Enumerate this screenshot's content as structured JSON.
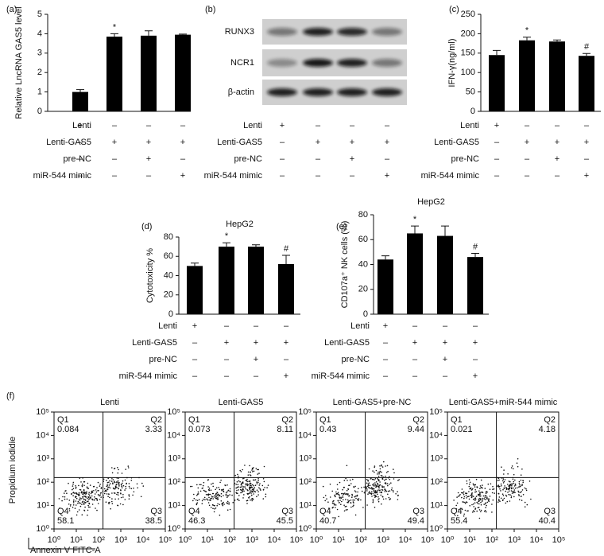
{
  "chart_data": [
    {
      "type": "bar",
      "label": "(a)",
      "ylabel": "Relative LncRNA GAS5 level",
      "values": [
        1.0,
        3.85,
        3.9,
        3.95
      ],
      "errors": [
        0.12,
        0.15,
        0.25,
        0.03
      ],
      "annotations": [
        null,
        "*",
        null,
        null
      ],
      "color": "#000000",
      "ylim": [
        0,
        5
      ],
      "yticks": [
        0,
        1,
        2,
        3,
        4,
        5
      ],
      "conditions": [
        {
          "name": "Lenti",
          "signs": [
            "+",
            "–",
            "–",
            "–"
          ]
        },
        {
          "name": "Lenti-GAS5",
          "signs": [
            "–",
            "+",
            "+",
            "+"
          ]
        },
        {
          "name": "pre-NC",
          "signs": [
            "–",
            "–",
            "+",
            "–"
          ]
        },
        {
          "name": "miR-544 mimic",
          "signs": [
            "–",
            "–",
            "–",
            "+"
          ]
        }
      ]
    },
    {
      "type": "bar",
      "label": "(c)",
      "ylabel": "IFN-γ(ng/ml)",
      "values": [
        145,
        183,
        180,
        143
      ],
      "errors": [
        12,
        8,
        4,
        6
      ],
      "annotations": [
        null,
        "*",
        null,
        "#"
      ],
      "color": "#000000",
      "ylim": [
        0,
        250
      ],
      "yticks": [
        0,
        50,
        100,
        150,
        200,
        250
      ],
      "conditions": [
        {
          "name": "Lenti",
          "signs": [
            "+",
            "–",
            "–",
            "–"
          ]
        },
        {
          "name": "Lenti-GAS5",
          "signs": [
            "–",
            "+",
            "+",
            "+"
          ]
        },
        {
          "name": "pre-NC",
          "signs": [
            "–",
            "–",
            "+",
            "–"
          ]
        },
        {
          "name": "miR-544 mimic",
          "signs": [
            "–",
            "–",
            "–",
            "+"
          ]
        }
      ]
    },
    {
      "type": "bar",
      "label": "(d)",
      "title": "HepG2",
      "ylabel": "Cytotoxicity %",
      "values": [
        50,
        70,
        70,
        52
      ],
      "errors": [
        3,
        4,
        2,
        9
      ],
      "annotations": [
        null,
        "*",
        null,
        "#"
      ],
      "color": "#000000",
      "ylim": [
        0,
        80
      ],
      "yticks": [
        0,
        20,
        40,
        60,
        80
      ],
      "conditions": [
        {
          "name": "Lenti",
          "signs": [
            "+",
            "–",
            "–",
            "–"
          ]
        },
        {
          "name": "Lenti-GAS5",
          "signs": [
            "–",
            "+",
            "+",
            "+"
          ]
        },
        {
          "name": "pre-NC",
          "signs": [
            "–",
            "–",
            "+",
            "–"
          ]
        },
        {
          "name": "miR-544 mimic",
          "signs": [
            "–",
            "–",
            "–",
            "+"
          ]
        }
      ]
    },
    {
      "type": "bar",
      "label": "(e)",
      "title": "HepG2",
      "ylabel": "CD107a⁺ NK cells (%)",
      "values": [
        44,
        65,
        63,
        46
      ],
      "errors": [
        3,
        6,
        8,
        3
      ],
      "annotations": [
        null,
        "*",
        null,
        "#"
      ],
      "color": "#000000",
      "ylim": [
        0,
        80
      ],
      "yticks": [
        0,
        20,
        40,
        60,
        80
      ],
      "conditions": [
        {
          "name": "Lenti",
          "signs": [
            "+",
            "–",
            "–",
            "–"
          ]
        },
        {
          "name": "Lenti-GAS5",
          "signs": [
            "–",
            "+",
            "+",
            "+"
          ]
        },
        {
          "name": "pre-NC",
          "signs": [
            "–",
            "–",
            "+",
            "–"
          ]
        },
        {
          "name": "miR-544 mimic",
          "signs": [
            "–",
            "–",
            "–",
            "+"
          ]
        }
      ]
    }
  ],
  "blot": {
    "label": "(b)",
    "rows": [
      "RUNX3",
      "NCR1",
      "β-actin"
    ],
    "conditions": [
      {
        "name": "Lenti",
        "signs": [
          "+",
          "–",
          "–",
          "–"
        ]
      },
      {
        "name": "Lenti-GAS5",
        "signs": [
          "–",
          "+",
          "+",
          "+"
        ]
      },
      {
        "name": "pre-NC",
        "signs": [
          "–",
          "–",
          "+",
          "–"
        ]
      },
      {
        "name": "miR-544 mimic",
        "signs": [
          "–",
          "–",
          "–",
          "+"
        ]
      }
    ]
  },
  "flow": {
    "label": "(f)",
    "xlabel": "Annexin V FITC-A",
    "ylabel": "Propidium iodidie",
    "log": true,
    "xlim": [
      1,
      100000
    ],
    "ylim": [
      1,
      100000
    ],
    "xticks": [
      {
        "value": 1,
        "label": "10⁰"
      },
      {
        "value": 10,
        "label": "10¹"
      },
      {
        "value": 100,
        "label": "10²"
      },
      {
        "value": 1000,
        "label": "10³"
      },
      {
        "value": 10000,
        "label": "10⁴"
      },
      {
        "value": 100000,
        "label": "10⁵"
      }
    ],
    "yticks": [
      {
        "value": 1,
        "label": "10⁰"
      },
      {
        "value": 10,
        "label": "10¹"
      },
      {
        "value": 100,
        "label": "10²"
      },
      {
        "value": 1000,
        "label": "10³"
      },
      {
        "value": 10000,
        "label": "10⁴"
      },
      {
        "value": 100000,
        "label": "10⁵"
      }
    ],
    "plots": [
      {
        "title": "Lenti",
        "quadrants": [
          {
            "name": "Q1",
            "value": 0.084
          },
          {
            "name": "Q2",
            "value": 3.33
          },
          {
            "name": "Q3",
            "value": 38.5
          },
          {
            "name": "Q4",
            "value": 58.1
          }
        ]
      },
      {
        "title": "Lenti-GAS5",
        "quadrants": [
          {
            "name": "Q1",
            "value": 0.073
          },
          {
            "name": "Q2",
            "value": 8.11
          },
          {
            "name": "Q3",
            "value": 45.5
          },
          {
            "name": "Q4",
            "value": 46.3
          }
        ]
      },
      {
        "title": "Lenti-GAS5+pre-NC",
        "quadrants": [
          {
            "name": "Q1",
            "value": 0.43
          },
          {
            "name": "Q2",
            "value": 9.44
          },
          {
            "name": "Q3",
            "value": 49.4
          },
          {
            "name": "Q4",
            "value": 40.7
          }
        ]
      },
      {
        "title": "Lenti-GAS5+miR-544 mimic",
        "quadrants": [
          {
            "name": "Q1",
            "value": 0.021
          },
          {
            "name": "Q2",
            "value": 4.18
          },
          {
            "name": "Q3",
            "value": 40.4
          },
          {
            "name": "Q4",
            "value": 55.4
          }
        ]
      }
    ]
  }
}
